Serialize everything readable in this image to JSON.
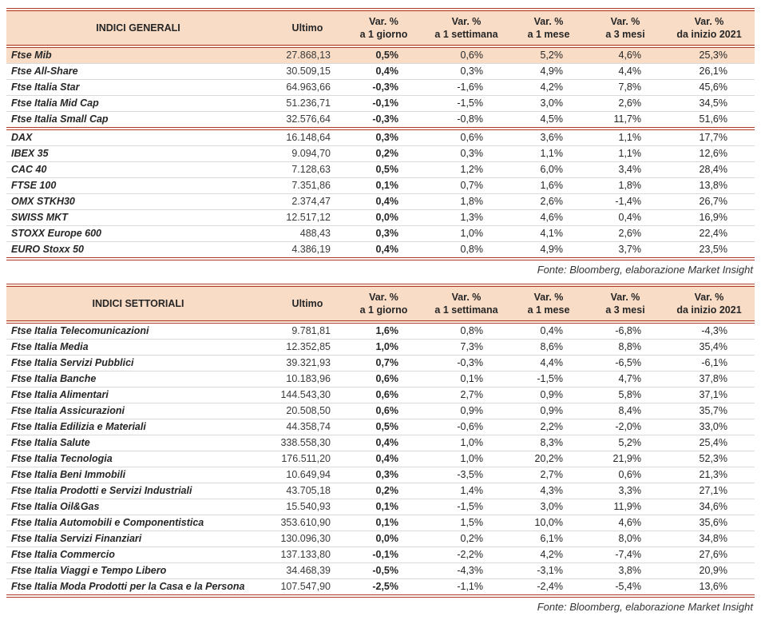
{
  "colors": {
    "accent_line": "#B03A2A",
    "header_bg": "#F9DCC6",
    "row_line": "#DBDBDB",
    "highlight_bg": "#F9DCC6"
  },
  "tables": [
    {
      "id": "indici-generali",
      "title": "INDICI GENERALI",
      "headers": {
        "ultimo": "Ultimo",
        "var_cols": [
          {
            "line1": "Var. %",
            "line2": "a 1 giorno"
          },
          {
            "line1": "Var. %",
            "line2": "a 1 settimana"
          },
          {
            "line1": "Var. %",
            "line2": "a 1 mese"
          },
          {
            "line1": "Var. %",
            "line2": "a 3 mesi"
          },
          {
            "line1": "Var. %",
            "line2": "da inizio 2021"
          }
        ]
      },
      "rows": [
        {
          "name": "Ftse Mib",
          "ultimo": "27.868,13",
          "d1": "0,5%",
          "w1": "0,6%",
          "m1": "5,2%",
          "m3": "4,6%",
          "ytd": "25,3%",
          "highlight": true
        },
        {
          "name": "Ftse All-Share",
          "ultimo": "30.509,15",
          "d1": "0,4%",
          "w1": "0,3%",
          "m1": "4,9%",
          "m3": "4,4%",
          "ytd": "26,1%"
        },
        {
          "name": "Ftse Italia Star",
          "ultimo": "64.963,66",
          "d1": "-0,3%",
          "w1": "-1,6%",
          "m1": "4,2%",
          "m3": "7,8%",
          "ytd": "45,6%"
        },
        {
          "name": "Ftse Italia Mid Cap",
          "ultimo": "51.236,71",
          "d1": "-0,1%",
          "w1": "-1,5%",
          "m1": "3,0%",
          "m3": "2,6%",
          "ytd": "34,5%"
        },
        {
          "name": "Ftse Italia Small Cap",
          "ultimo": "32.576,64",
          "d1": "-0,3%",
          "w1": "-0,8%",
          "m1": "4,5%",
          "m3": "11,7%",
          "ytd": "51,6%",
          "separator_after": true
        },
        {
          "name": "DAX",
          "ultimo": "16.148,64",
          "d1": "0,3%",
          "w1": "0,6%",
          "m1": "3,6%",
          "m3": "1,1%",
          "ytd": "17,7%"
        },
        {
          "name": "IBEX 35",
          "ultimo": "9.094,70",
          "d1": "0,2%",
          "w1": "0,3%",
          "m1": "1,1%",
          "m3": "1,1%",
          "ytd": "12,6%"
        },
        {
          "name": "CAC 40",
          "ultimo": "7.128,63",
          "d1": "0,5%",
          "w1": "1,2%",
          "m1": "6,0%",
          "m3": "3,4%",
          "ytd": "28,4%"
        },
        {
          "name": "FTSE 100",
          "ultimo": "7.351,86",
          "d1": "0,1%",
          "w1": "0,7%",
          "m1": "1,6%",
          "m3": "1,8%",
          "ytd": "13,8%"
        },
        {
          "name": "OMX STKH30",
          "ultimo": "2.374,47",
          "d1": "0,4%",
          "w1": "1,8%",
          "m1": "2,6%",
          "m3": "-1,4%",
          "ytd": "26,7%"
        },
        {
          "name": "SWISS MKT",
          "ultimo": "12.517,12",
          "d1": "0,0%",
          "w1": "1,3%",
          "m1": "4,6%",
          "m3": "0,4%",
          "ytd": "16,9%"
        },
        {
          "name": "STOXX Europe 600",
          "ultimo": "488,43",
          "d1": "0,3%",
          "w1": "1,0%",
          "m1": "4,1%",
          "m3": "2,6%",
          "ytd": "22,4%"
        },
        {
          "name": "EURO Stoxx 50",
          "ultimo": "4.386,19",
          "d1": "0,4%",
          "w1": "0,8%",
          "m1": "4,9%",
          "m3": "3,7%",
          "ytd": "23,5%"
        }
      ],
      "footer": "Fonte: Bloomberg, elaborazione Market Insight"
    },
    {
      "id": "indici-settoriali",
      "title": "INDICI SETTORIALI",
      "headers": {
        "ultimo": "Ultimo",
        "var_cols": [
          {
            "line1": "Var. %",
            "line2": "a 1 giorno"
          },
          {
            "line1": "Var. %",
            "line2": "a 1 settimana"
          },
          {
            "line1": "Var. %",
            "line2": "a 1 mese"
          },
          {
            "line1": "Var. %",
            "line2": "a 3 mesi"
          },
          {
            "line1": "Var. %",
            "line2": "da inizio 2021"
          }
        ]
      },
      "rows": [
        {
          "name": "Ftse Italia Telecomunicazioni",
          "ultimo": "9.781,81",
          "d1": "1,6%",
          "w1": "0,8%",
          "m1": "0,4%",
          "m3": "-6,8%",
          "ytd": "-4,3%"
        },
        {
          "name": "Ftse Italia Media",
          "ultimo": "12.352,85",
          "d1": "1,0%",
          "w1": "7,3%",
          "m1": "8,6%",
          "m3": "8,8%",
          "ytd": "35,4%"
        },
        {
          "name": "Ftse Italia Servizi Pubblici",
          "ultimo": "39.321,93",
          "d1": "0,7%",
          "w1": "-0,3%",
          "m1": "4,4%",
          "m3": "-6,5%",
          "ytd": "-6,1%"
        },
        {
          "name": "Ftse Italia Banche",
          "ultimo": "10.183,96",
          "d1": "0,6%",
          "w1": "0,1%",
          "m1": "-1,5%",
          "m3": "4,7%",
          "ytd": "37,8%"
        },
        {
          "name": "Ftse Italia Alimentari",
          "ultimo": "144.543,30",
          "d1": "0,6%",
          "w1": "2,7%",
          "m1": "0,9%",
          "m3": "5,8%",
          "ytd": "37,1%"
        },
        {
          "name": "Ftse Italia Assicurazioni",
          "ultimo": "20.508,50",
          "d1": "0,6%",
          "w1": "0,9%",
          "m1": "0,9%",
          "m3": "8,4%",
          "ytd": "35,7%"
        },
        {
          "name": "Ftse Italia Edilizia e Materiali",
          "ultimo": "44.358,74",
          "d1": "0,5%",
          "w1": "-0,6%",
          "m1": "2,2%",
          "m3": "-2,0%",
          "ytd": "33,0%"
        },
        {
          "name": "Ftse Italia Salute",
          "ultimo": "338.558,30",
          "d1": "0,4%",
          "w1": "1,0%",
          "m1": "8,3%",
          "m3": "5,2%",
          "ytd": "25,4%"
        },
        {
          "name": "Ftse Italia Tecnologia",
          "ultimo": "176.511,20",
          "d1": "0,4%",
          "w1": "1,0%",
          "m1": "20,2%",
          "m3": "21,9%",
          "ytd": "52,3%"
        },
        {
          "name": "Ftse Italia Beni Immobili",
          "ultimo": "10.649,94",
          "d1": "0,3%",
          "w1": "-3,5%",
          "m1": "2,7%",
          "m3": "0,6%",
          "ytd": "21,3%"
        },
        {
          "name": "Ftse Italia Prodotti e Servizi Industriali",
          "ultimo": "43.705,18",
          "d1": "0,2%",
          "w1": "1,4%",
          "m1": "4,3%",
          "m3": "3,3%",
          "ytd": "27,1%"
        },
        {
          "name": "Ftse Italia Oil&Gas",
          "ultimo": "15.540,93",
          "d1": "0,1%",
          "w1": "-1,5%",
          "m1": "3,0%",
          "m3": "11,9%",
          "ytd": "34,6%"
        },
        {
          "name": "Ftse Italia Automobili e Componentistica",
          "ultimo": "353.610,90",
          "d1": "0,1%",
          "w1": "1,5%",
          "m1": "10,0%",
          "m3": "4,6%",
          "ytd": "35,6%"
        },
        {
          "name": "Ftse Italia Servizi Finanziari",
          "ultimo": "130.096,30",
          "d1": "0,0%",
          "w1": "0,2%",
          "m1": "6,1%",
          "m3": "8,0%",
          "ytd": "34,8%"
        },
        {
          "name": "Ftse Italia Commercio",
          "ultimo": "137.133,80",
          "d1": "-0,1%",
          "w1": "-2,2%",
          "m1": "4,2%",
          "m3": "-7,4%",
          "ytd": "27,6%"
        },
        {
          "name": "Ftse Italia Viaggi e Tempo Libero",
          "ultimo": "34.468,39",
          "d1": "-0,5%",
          "w1": "-4,3%",
          "m1": "-3,1%",
          "m3": "3,8%",
          "ytd": "20,9%"
        },
        {
          "name": "Ftse Italia Moda Prodotti per la Casa e la Persona",
          "ultimo": "107.547,90",
          "d1": "-2,5%",
          "w1": "-1,1%",
          "m1": "-2,4%",
          "m3": "-5,4%",
          "ytd": "13,6%"
        }
      ],
      "footer": "Fonte: Bloomberg, elaborazione Market Insight"
    }
  ]
}
